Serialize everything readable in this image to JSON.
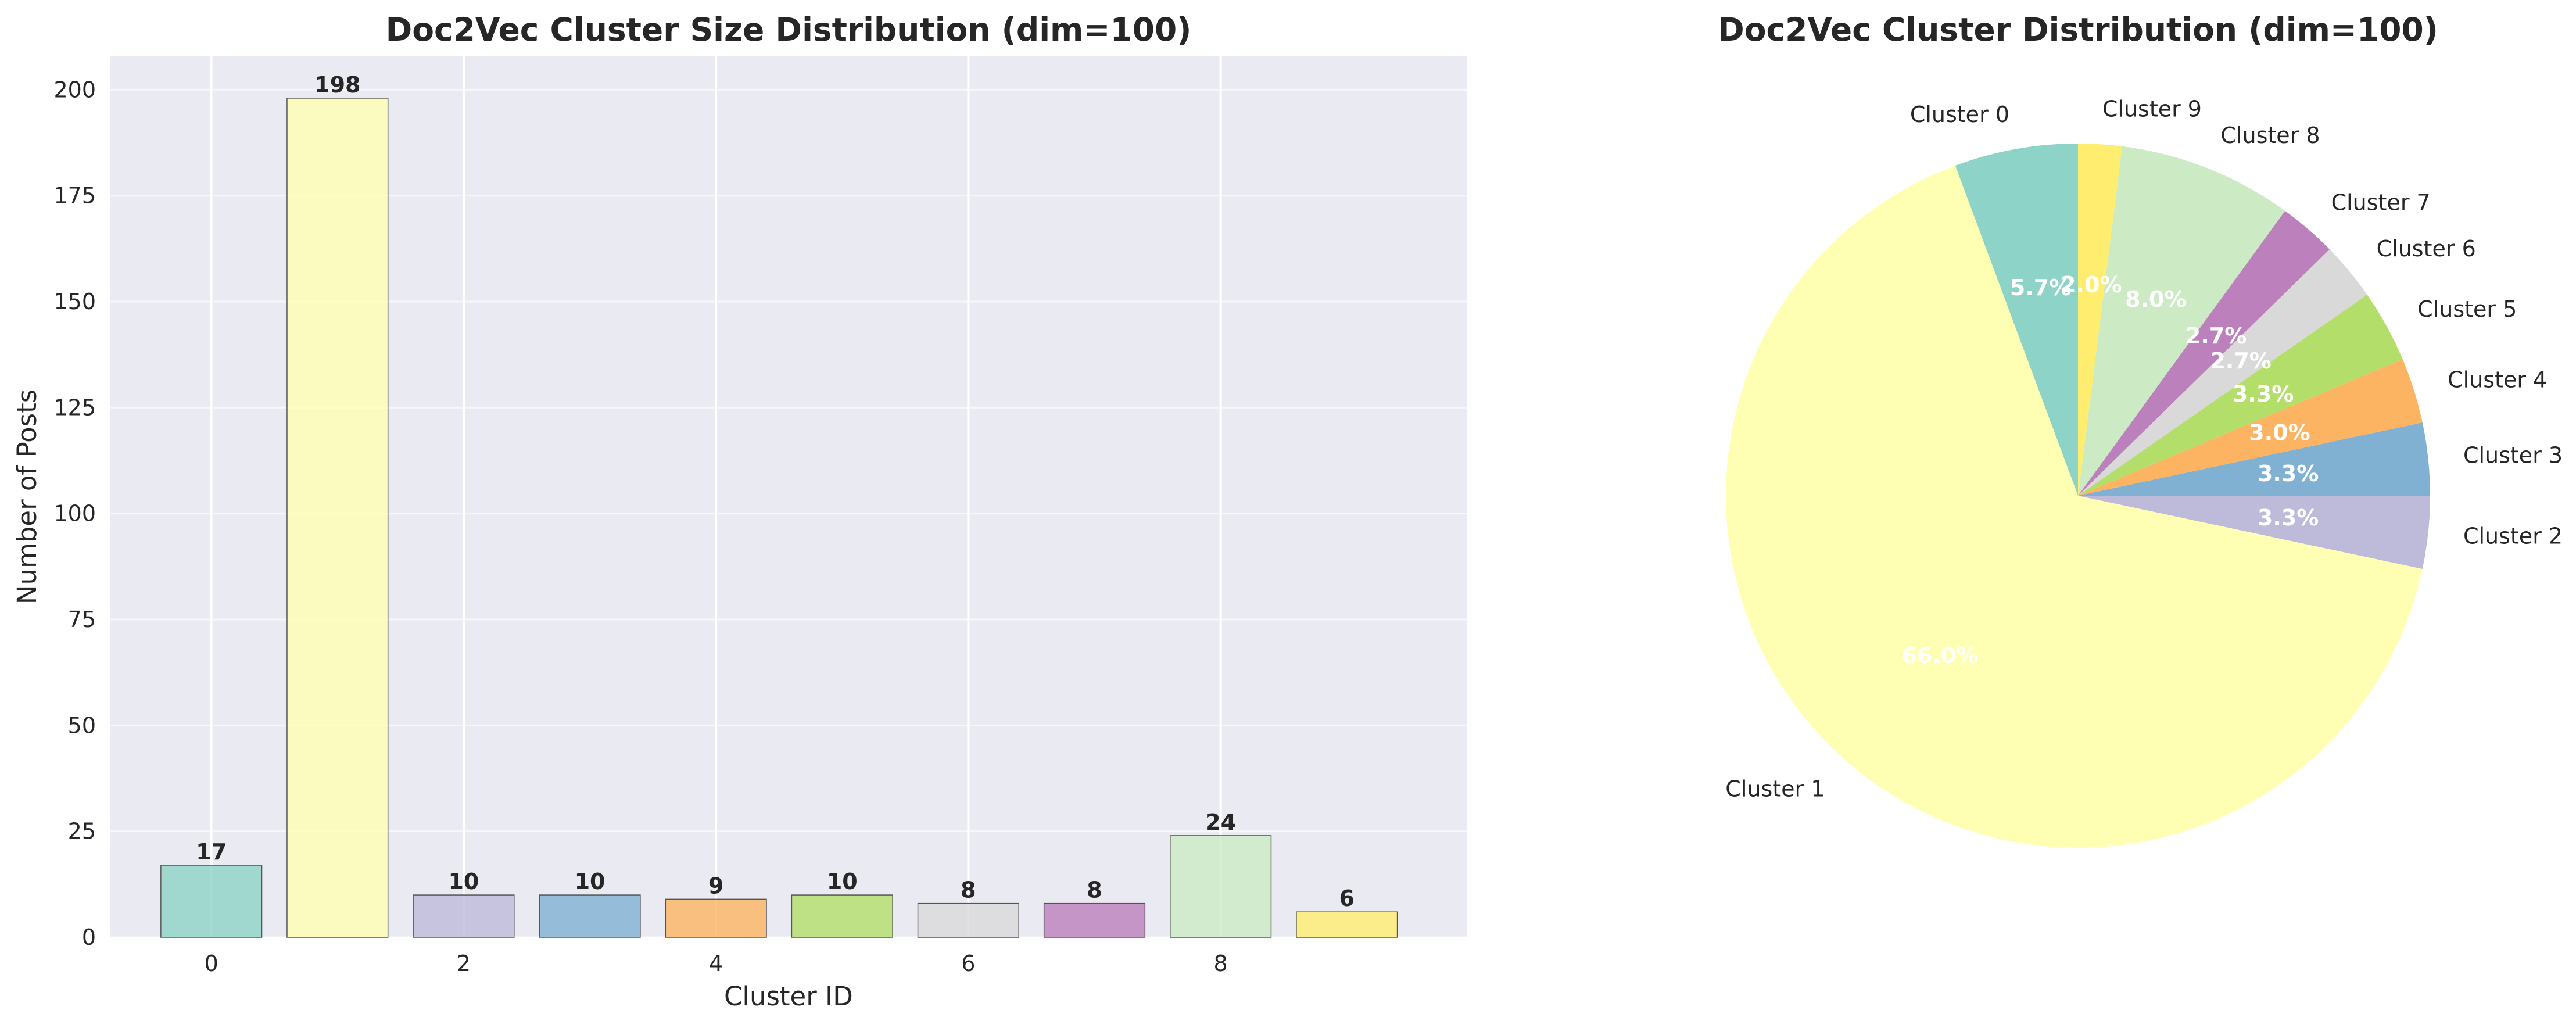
{
  "chart_data": [
    {
      "type": "bar",
      "title": "Doc2Vec Cluster Size Distribution (dim=100)",
      "xlabel": "Cluster ID",
      "ylabel": "Number of Posts",
      "categories": [
        0,
        1,
        2,
        3,
        4,
        5,
        6,
        7,
        8,
        9
      ],
      "values": [
        17,
        198,
        10,
        10,
        9,
        10,
        8,
        8,
        24,
        6
      ],
      "xticks": [
        0,
        2,
        4,
        6,
        8
      ],
      "yticks": [
        0,
        25,
        50,
        75,
        100,
        125,
        150,
        175,
        200
      ],
      "ylim": [
        0,
        208
      ],
      "xlim": [
        -0.8,
        9.95
      ],
      "grid": true,
      "colors": [
        "#8dd3c7",
        "#ffffb3",
        "#bebada",
        "#80b1d3",
        "#fdb462",
        "#b3de69",
        "#d9d9d9",
        "#bc80bd",
        "#ccebc5",
        "#ffed6f"
      ]
    },
    {
      "type": "pie",
      "title": "Doc2Vec Cluster Distribution (dim=100)",
      "labels": [
        "Cluster 0",
        "Cluster 1",
        "Cluster 2",
        "Cluster 3",
        "Cluster 4",
        "Cluster 5",
        "Cluster 6",
        "Cluster 7",
        "Cluster 8",
        "Cluster 9"
      ],
      "values": [
        17,
        198,
        10,
        10,
        9,
        10,
        8,
        8,
        24,
        6
      ],
      "percent_labels": [
        "5.7%",
        "66.0%",
        "3.3%",
        "3.3%",
        "3.0%",
        "3.3%",
        "2.7%",
        "2.7%",
        "8.0%",
        "2.0%"
      ],
      "start_angle": 90,
      "colors": [
        "#8dd3c7",
        "#ffffb3",
        "#bebada",
        "#80b1d3",
        "#fdb462",
        "#b3de69",
        "#d9d9d9",
        "#bc80bd",
        "#ccebc5",
        "#ffed6f"
      ]
    }
  ]
}
